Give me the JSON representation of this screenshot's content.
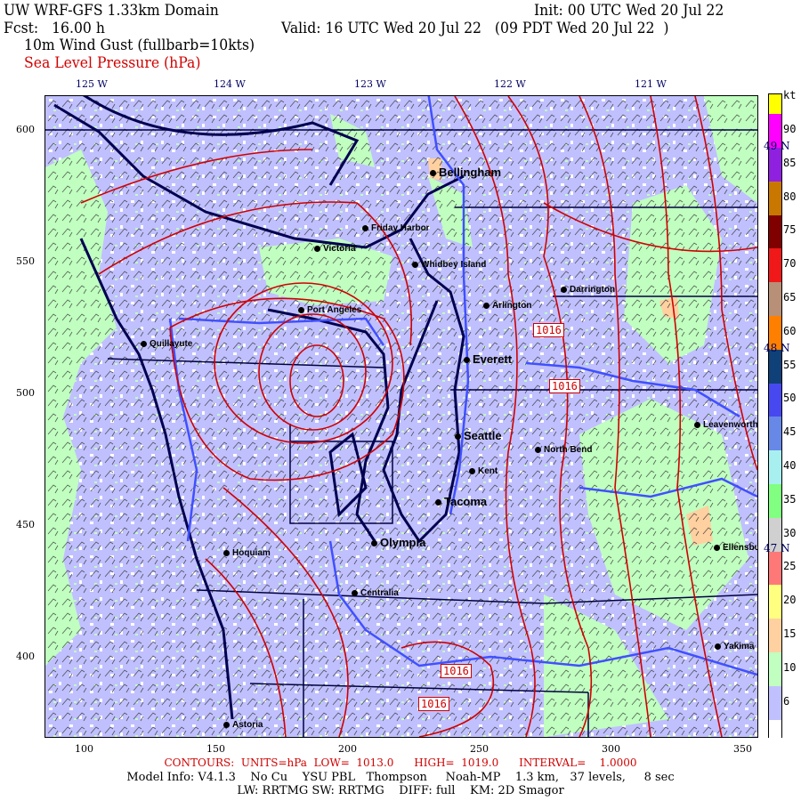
{
  "header": {
    "title": "UW WRF-GFS 1.33km Domain",
    "init": "Init: 00 UTC Wed 20 Jul 22",
    "fcst": "Fcst:   16.00 h",
    "valid": "Valid: 16 UTC Wed 20 Jul 22   (09 PDT Wed 20 Jul 22  )",
    "field1": "10m Wind Gust (fullbarb=10kts)",
    "field2": "Sea Level Pressure (hPa)"
  },
  "axes": {
    "top": [
      "125 W",
      "124 W",
      "123 W",
      "122 W",
      "121 W"
    ],
    "left": [
      "600",
      "550",
      "500",
      "450",
      "400"
    ],
    "bottom": [
      "100",
      "150",
      "200",
      "250",
      "300",
      "350"
    ],
    "right_lat": [
      "49 N",
      "48 N",
      "47 N"
    ]
  },
  "cities": [
    {
      "name": "Bellingham",
      "big": true
    },
    {
      "name": "Friday Harbor",
      "big": false
    },
    {
      "name": "Victoria",
      "big": false
    },
    {
      "name": "Whidbey Island",
      "big": false
    },
    {
      "name": "Darrington",
      "big": false
    },
    {
      "name": "Arlington",
      "big": false
    },
    {
      "name": "Port Angeles",
      "big": false
    },
    {
      "name": "Quillayute",
      "big": false
    },
    {
      "name": "Everett",
      "big": true
    },
    {
      "name": "Seattle",
      "big": true
    },
    {
      "name": "North Bend",
      "big": false
    },
    {
      "name": "Kent",
      "big": false
    },
    {
      "name": "Leavenworth",
      "big": false
    },
    {
      "name": "Tacoma",
      "big": true
    },
    {
      "name": "Olympia",
      "big": true
    },
    {
      "name": "Hoquiam",
      "big": false
    },
    {
      "name": "Ellensburg",
      "big": false
    },
    {
      "name": "Centralia",
      "big": false
    },
    {
      "name": "Yakima",
      "big": false
    },
    {
      "name": "Astoria",
      "big": false
    }
  ],
  "contour_labels": [
    "1016",
    "1016",
    "1016",
    "1016"
  ],
  "colorbar": {
    "unit": "kt",
    "labels": [
      "90",
      "85",
      "80",
      "75",
      "70",
      "65",
      "60",
      "55",
      "50",
      "45",
      "40",
      "35",
      "30",
      "25",
      "20",
      "15",
      "10",
      "6"
    ],
    "colors": {
      "top": "#ffff00",
      "magenta": "#ff00ff",
      "pairs": [
        "#9020e0",
        "#c87800",
        "#800000",
        "#f01818",
        "#b89078",
        "#ff8000",
        "#104078",
        "#4848f0",
        "#6888e8",
        "#a8f0f0",
        "#80ff80",
        "#d0d0d0",
        "#ff7878",
        "#ffff80",
        "#ffd0a0",
        "#c0ffc0",
        "#c0c0ff"
      ],
      "bottom": "#ffffff"
    }
  },
  "colors": {
    "contour": "#d00000",
    "coast": "#000050",
    "river": "#4050ff",
    "land_low": "#c0c0ff",
    "land_green": "#c0ffc0"
  },
  "footer": {
    "contours": "CONTOURS:  UNITS=hPa  LOW=  1013.0      HIGH=  1019.0      INTERVAL=    1.0000",
    "model": "Model Info: V4.1.3    No Cu    YSU PBL   Thompson     Noah-MP    1.3 km,   37 levels,     8 sec",
    "physics": "LW: RRTMG SW: RRTMG    DIFF: full    KM: 2D Smagor"
  }
}
